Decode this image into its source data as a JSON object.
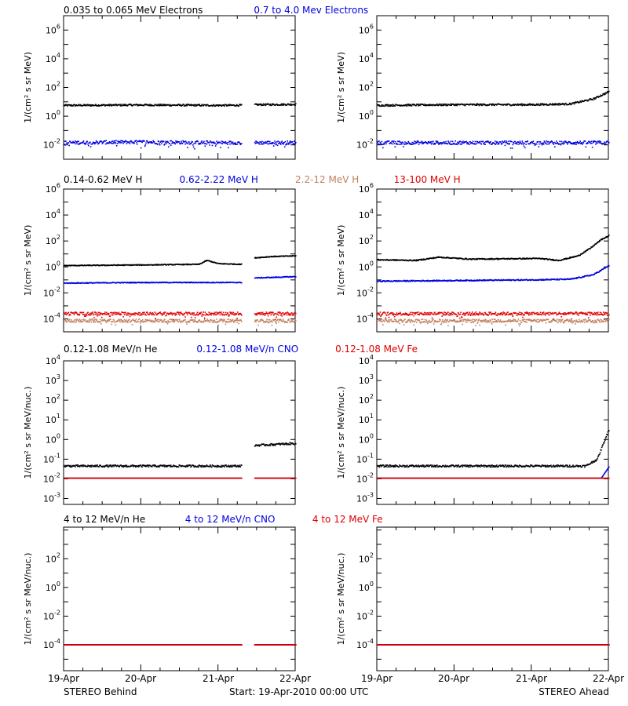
{
  "chart_data": [
    {
      "type": "scatter",
      "title_series": [
        {
          "label": "0.035 to 0.065 MeV Electrons",
          "color": "#000000"
        },
        {
          "label": "0.7 to 4.0 Mev Electrons",
          "color": "#0000e0"
        }
      ],
      "ylabel": "1/(cm^2 s sr MeV)",
      "ylim_log10": [
        -3,
        7
      ],
      "yticks": [
        {
          "mantissa": "10",
          "exp": "6",
          "value": 6
        },
        {
          "mantissa": "10",
          "exp": "4",
          "value": 4
        },
        {
          "mantissa": "10",
          "exp": "2",
          "value": 2
        },
        {
          "mantissa": "10",
          "exp": "0",
          "value": 0
        },
        {
          "mantissa": "10",
          "exp": "-2",
          "value": -2
        }
      ],
      "panels": [
        {
          "spacecraft": "STEREO Behind",
          "data_gap_days": [
            2.3,
            2.47
          ],
          "series": [
            {
              "name": "0.035 to 0.065 MeV Electrons",
              "color": "#000000",
              "log10_flux": [
                [
                  0,
                  0.75
                ],
                [
                  1,
                  0.78
                ],
                [
                  2,
                  0.75
                ],
                [
                  2.3,
                  0.76
                ],
                [
                  2.47,
                  0.8
                ],
                [
                  3,
                  0.82
                ]
              ],
              "noise": 0.06
            },
            {
              "name": "0.7 to 4.0 Mev Electrons",
              "color": "#0000e0",
              "log10_flux": [
                [
                  0,
                  -1.85
                ],
                [
                  1,
                  -1.8
                ],
                [
                  2,
                  -1.85
                ],
                [
                  3,
                  -1.85
                ]
              ],
              "noise": 0.12
            }
          ]
        },
        {
          "spacecraft": "STEREO Ahead",
          "data_gap_days": [],
          "series": [
            {
              "name": "0.035 to 0.065 MeV Electrons",
              "color": "#000000",
              "log10_flux": [
                [
                  0,
                  0.75
                ],
                [
                  1,
                  0.8
                ],
                [
                  2,
                  0.8
                ],
                [
                  2.5,
                  0.85
                ],
                [
                  2.8,
                  1.2
                ],
                [
                  3,
                  1.7
                ]
              ],
              "noise": 0.06
            },
            {
              "name": "0.7 to 4.0 Mev Electrons",
              "color": "#0000e0",
              "log10_flux": [
                [
                  0,
                  -1.85
                ],
                [
                  1,
                  -1.85
                ],
                [
                  2,
                  -1.85
                ],
                [
                  3,
                  -1.85
                ]
              ],
              "noise": 0.12
            }
          ]
        }
      ]
    },
    {
      "type": "scatter",
      "title_series": [
        {
          "label": "0.14-0.62 MeV H",
          "color": "#000000"
        },
        {
          "label": "0.62-2.22 MeV H",
          "color": "#0000e0"
        },
        {
          "label": "2.2-12 MeV H",
          "color": "#c08060"
        },
        {
          "label": "13-100 MeV H",
          "color": "#e00000"
        }
      ],
      "ylabel": "1/(cm^2 s sr MeV)",
      "ylim_log10": [
        -5,
        6
      ],
      "yticks": [
        {
          "mantissa": "10",
          "exp": "6",
          "value": 6
        },
        {
          "mantissa": "10",
          "exp": "4",
          "value": 4
        },
        {
          "mantissa": "10",
          "exp": "2",
          "value": 2
        },
        {
          "mantissa": "10",
          "exp": "0",
          "value": 0
        },
        {
          "mantissa": "10",
          "exp": "-2",
          "value": -2
        },
        {
          "mantissa": "10",
          "exp": "-4",
          "value": -4
        }
      ],
      "panels": [
        {
          "spacecraft": "STEREO Behind",
          "data_gap_days": [
            2.3,
            2.47
          ],
          "series": [
            {
              "name": "0.14-0.62 MeV H",
              "color": "#000000",
              "log10_flux": [
                [
                  0,
                  0.1
                ],
                [
                  1,
                  0.15
                ],
                [
                  1.75,
                  0.2
                ],
                [
                  1.85,
                  0.5
                ],
                [
                  2.0,
                  0.25
                ],
                [
                  2.3,
                  0.2
                ],
                [
                  2.47,
                  0.7
                ],
                [
                  2.7,
                  0.8
                ],
                [
                  3,
                  0.85
                ]
              ],
              "noise": 0.03
            },
            {
              "name": "0.62-2.22 MeV H",
              "color": "#0000e0",
              "log10_flux": [
                [
                  0,
                  -1.25
                ],
                [
                  1,
                  -1.2
                ],
                [
                  2,
                  -1.2
                ],
                [
                  2.3,
                  -1.2
                ],
                [
                  2.47,
                  -0.85
                ],
                [
                  3,
                  -0.75
                ]
              ],
              "noise": 0.03
            },
            {
              "name": "2.2-12 MeV H",
              "color": "#c08060",
              "log10_flux": [
                [
                  0,
                  -4.15
                ],
                [
                  3,
                  -4.15
                ]
              ],
              "noise": 0.12
            },
            {
              "name": "13-100 MeV H",
              "color": "#e00000",
              "log10_flux": [
                [
                  0,
                  -3.6
                ],
                [
                  3,
                  -3.6
                ]
              ],
              "noise": 0.12
            }
          ]
        },
        {
          "spacecraft": "STEREO Ahead",
          "data_gap_days": [],
          "series": [
            {
              "name": "0.14-0.62 MeV H",
              "color": "#000000",
              "log10_flux": [
                [
                  0,
                  0.55
                ],
                [
                  0.5,
                  0.5
                ],
                [
                  0.8,
                  0.75
                ],
                [
                  1.2,
                  0.6
                ],
                [
                  2.1,
                  0.65
                ],
                [
                  2.35,
                  0.5
                ],
                [
                  2.6,
                  0.85
                ],
                [
                  2.75,
                  1.4
                ],
                [
                  2.9,
                  2.1
                ],
                [
                  3,
                  2.4
                ]
              ],
              "noise": 0.04
            },
            {
              "name": "0.62-2.22 MeV H",
              "color": "#0000e0",
              "log10_flux": [
                [
                  0,
                  -1.1
                ],
                [
                  2.0,
                  -1.0
                ],
                [
                  2.5,
                  -0.95
                ],
                [
                  2.8,
                  -0.6
                ],
                [
                  3,
                  0.1
                ]
              ],
              "noise": 0.04
            },
            {
              "name": "2.2-12 MeV H",
              "color": "#c08060",
              "log10_flux": [
                [
                  0,
                  -4.15
                ],
                [
                  3,
                  -4.15
                ]
              ],
              "noise": 0.12
            },
            {
              "name": "13-100 MeV H",
              "color": "#e00000",
              "log10_flux": [
                [
                  0,
                  -3.6
                ],
                [
                  3,
                  -3.6
                ]
              ],
              "noise": 0.12
            }
          ]
        }
      ]
    },
    {
      "type": "scatter",
      "title_series": [
        {
          "label": "0.12-1.08 MeV/n He",
          "color": "#000000"
        },
        {
          "label": "0.12-1.08 MeV/n CNO",
          "color": "#0000e0"
        },
        {
          "label": "0.12-1.08 MeV Fe",
          "color": "#e00000"
        }
      ],
      "ylabel": "1/(cm^2 s sr MeV/nuc.)",
      "ylim_log10": [
        -3.3,
        4
      ],
      "yticks": [
        {
          "mantissa": "10",
          "exp": "4",
          "value": 4
        },
        {
          "mantissa": "10",
          "exp": "3",
          "value": 3
        },
        {
          "mantissa": "10",
          "exp": "2",
          "value": 2
        },
        {
          "mantissa": "10",
          "exp": "1",
          "value": 1
        },
        {
          "mantissa": "10",
          "exp": "0",
          "value": 0
        },
        {
          "mantissa": "10",
          "exp": "-1",
          "value": -1
        },
        {
          "mantissa": "10",
          "exp": "-2",
          "value": -2
        },
        {
          "mantissa": "10",
          "exp": "-3",
          "value": -3
        }
      ],
      "panels": [
        {
          "spacecraft": "STEREO Behind",
          "data_gap_days": [
            2.3,
            2.47
          ],
          "series": [
            {
              "name": "0.12-1.08 MeV/n He",
              "color": "#000000",
              "log10_flux": [
                [
                  0,
                  -1.35
                ],
                [
                  2.3,
                  -1.35
                ],
                [
                  2.47,
                  -0.3
                ],
                [
                  3,
                  -0.2
                ]
              ],
              "noise": 0.05
            },
            {
              "name": "0.12-1.08 MeV/n CNO",
              "color": "#0000e0",
              "log10_flux": [
                [
                  0,
                  -1.97
                ],
                [
                  3,
                  -1.97
                ]
              ],
              "noise": 0.0
            },
            {
              "name": "0.12-1.08 MeV Fe",
              "color": "#e00000",
              "log10_flux": [
                [
                  0,
                  -1.97
                ],
                [
                  3,
                  -1.97
                ]
              ],
              "noise": 0.0
            }
          ]
        },
        {
          "spacecraft": "STEREO Ahead",
          "data_gap_days": [],
          "series": [
            {
              "name": "0.12-1.08 MeV/n He",
              "color": "#000000",
              "log10_flux": [
                [
                  0,
                  -1.35
                ],
                [
                  2.7,
                  -1.35
                ],
                [
                  2.85,
                  -1.0
                ],
                [
                  3,
                  0.5
                ]
              ],
              "noise": 0.05
            },
            {
              "name": "0.12-1.08 MeV/n CNO",
              "color": "#0000e0",
              "log10_flux": [
                [
                  0,
                  -1.97
                ],
                [
                  2.9,
                  -1.97
                ],
                [
                  3,
                  -1.4
                ]
              ],
              "noise": 0.0
            },
            {
              "name": "0.12-1.08 MeV Fe",
              "color": "#e00000",
              "log10_flux": [
                [
                  0,
                  -1.97
                ],
                [
                  3,
                  -1.97
                ]
              ],
              "noise": 0.0
            }
          ]
        }
      ]
    },
    {
      "type": "scatter",
      "title_series": [
        {
          "label": "4 to 12 MeV/n He",
          "color": "#000000"
        },
        {
          "label": "4 to 12 MeV/n CNO",
          "color": "#0000e0"
        },
        {
          "label": "4 to 12 MeV Fe",
          "color": "#e00000"
        }
      ],
      "ylabel": "1/(cm^2 s sr MeV/nuc.)",
      "ylim_log10": [
        -5.8,
        4.2
      ],
      "yticks": [
        {
          "mantissa": "10",
          "exp": "2",
          "value": 2
        },
        {
          "mantissa": "10",
          "exp": "0",
          "value": 0
        },
        {
          "mantissa": "10",
          "exp": "-2",
          "value": -2
        },
        {
          "mantissa": "10",
          "exp": "-4",
          "value": -4
        }
      ],
      "panels": [
        {
          "spacecraft": "STEREO Behind",
          "data_gap_days": [
            2.3,
            2.47
          ],
          "series": [
            {
              "name": "4 to 12 MeV/n He",
              "color": "#000000",
              "log10_flux": [
                [
                  0,
                  -4.0
                ],
                [
                  3,
                  -4.0
                ]
              ],
              "noise": 0.0
            },
            {
              "name": "4 to 12 MeV/n CNO",
              "color": "#0000e0",
              "log10_flux": [
                [
                  0,
                  -4.0
                ],
                [
                  3,
                  -4.0
                ]
              ],
              "noise": 0.0
            },
            {
              "name": "4 to 12 MeV Fe",
              "color": "#e00000",
              "log10_flux": [
                [
                  0,
                  -4.0
                ],
                [
                  3,
                  -4.0
                ]
              ],
              "noise": 0.0
            }
          ]
        },
        {
          "spacecraft": "STEREO Ahead",
          "data_gap_days": [],
          "series": [
            {
              "name": "4 to 12 MeV/n He",
              "color": "#000000",
              "log10_flux": [
                [
                  0,
                  -4.0
                ],
                [
                  3,
                  -4.0
                ]
              ],
              "noise": 0.0
            },
            {
              "name": "4 to 12 MeV/n CNO",
              "color": "#0000e0",
              "log10_flux": [
                [
                  0,
                  -4.0
                ],
                [
                  3,
                  -4.0
                ]
              ],
              "noise": 0.0
            },
            {
              "name": "4 to 12 MeV Fe",
              "color": "#e00000",
              "log10_flux": [
                [
                  0,
                  -4.0
                ],
                [
                  3,
                  -4.0
                ]
              ],
              "noise": 0.0
            }
          ]
        }
      ]
    }
  ],
  "xaxis": {
    "ticks": [
      "19-Apr",
      "20-Apr",
      "21-Apr",
      "22-Apr"
    ],
    "xlim_days": [
      0,
      3
    ]
  },
  "footer": {
    "left": "STEREO Behind",
    "center": "Start: 19-Apr-2010 00:00 UTC",
    "right": "STEREO Ahead"
  }
}
